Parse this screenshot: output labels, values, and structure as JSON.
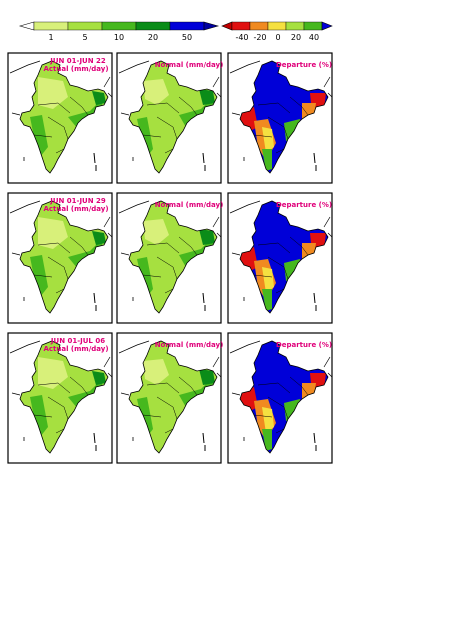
{
  "legend_actual": {
    "ticks": [
      "1",
      "5",
      "10",
      "20",
      "50"
    ],
    "colors": [
      "#d8f07a",
      "#a6e040",
      "#46b81e",
      "#0a8c18",
      "#0000d8"
    ]
  },
  "legend_departure": {
    "ticks": [
      "-40",
      "-20",
      "0",
      "20",
      "40"
    ],
    "colors": [
      "#e01010",
      "#f08a20",
      "#f5e040",
      "#a6e040",
      "#46b81e",
      "#0000d8"
    ]
  },
  "rows": [
    {
      "actual_label_line1": "JUN 01-JUN 22",
      "actual_label_line2": "Actual (mm/day)",
      "normal_label": "Normal (mm/day)",
      "departure_label": "Departure (%)"
    },
    {
      "actual_label_line1": "JUN 01-JUN 29",
      "actual_label_line2": "Actual (mm/day)",
      "normal_label": "Normal (mm/day)",
      "departure_label": "Departure (%)"
    },
    {
      "actual_label_line1": "JUN 01-JUL 06",
      "actual_label_line2": "Actual (mm/day)",
      "normal_label": "Normal (mm/day)",
      "departure_label": "Departure (%)"
    }
  ]
}
